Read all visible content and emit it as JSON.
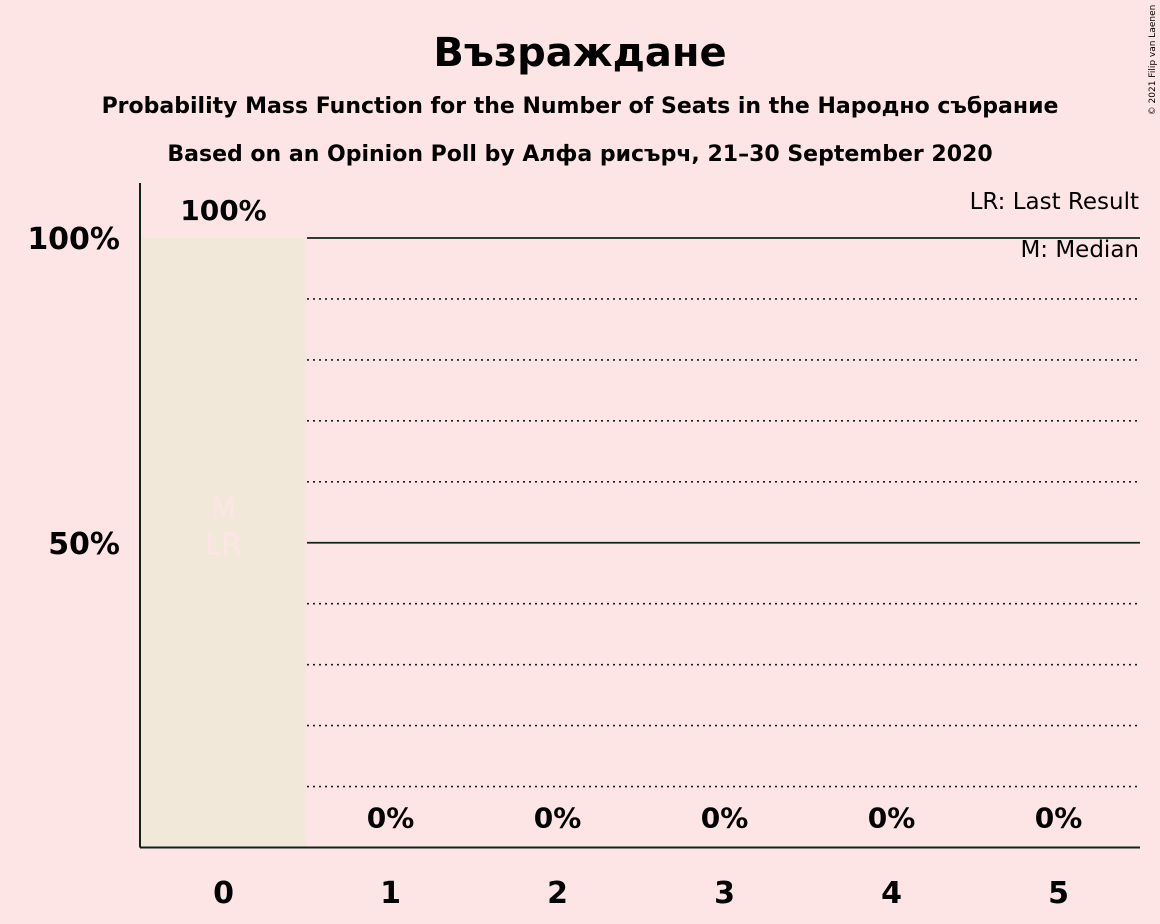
{
  "header": {
    "title": "Възраждане",
    "subtitle1": "Probability Mass Function for the Number of Seats in the Народно събрание",
    "subtitle2": "Based on an Opinion Poll by Алфа рисърч, 21–30 September 2020"
  },
  "legend": {
    "last_result": "LR: Last Result",
    "median": "M: Median"
  },
  "copyright": "© 2021 Filip van Laenen",
  "colors": {
    "background": "#fde5e5",
    "bar": "#f2e8da",
    "text": "#0f2419",
    "marker": "#fde5e5"
  },
  "chart_data": {
    "type": "bar",
    "categories": [
      "0",
      "1",
      "2",
      "3",
      "4",
      "5"
    ],
    "values": [
      100,
      0,
      0,
      0,
      0,
      0
    ],
    "value_labels": [
      "100%",
      "0%",
      "0%",
      "0%",
      "0%",
      "0%"
    ],
    "ylim": [
      0,
      100
    ],
    "y_ticks": [
      {
        "value": 50,
        "label": "50%"
      },
      {
        "value": 100,
        "label": "100%"
      }
    ],
    "gridlines_major": [
      50,
      100
    ],
    "gridlines_minor": [
      10,
      20,
      30,
      40,
      60,
      70,
      80,
      90
    ],
    "markers": [
      {
        "category": "0",
        "labels": [
          "M",
          "LR"
        ]
      }
    ]
  }
}
